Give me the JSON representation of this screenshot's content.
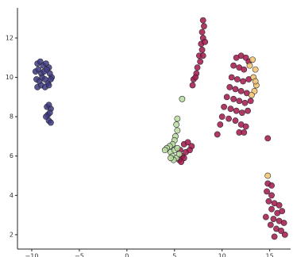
{
  "chart_data": {
    "type": "scatter",
    "xlim": [
      -11.5,
      17.2
    ],
    "ylim": [
      1.27,
      13.53
    ],
    "xticks": [
      {
        "value": -10,
        "label": "−10"
      },
      {
        "value": -5,
        "label": "−5"
      },
      0,
      5,
      10,
      15
    ],
    "yticks": [
      2,
      4,
      6,
      8,
      10,
      12
    ],
    "series": [
      {
        "color": "#3d3a85",
        "x": [
          -9.4,
          -9.1,
          -8.8,
          -8.5,
          -8.2,
          -9.6,
          -9.3,
          -9.0,
          -8.7,
          -8.4,
          -8.1,
          -7.9,
          -9.5,
          -9.2,
          -8.9,
          -8.6,
          -8.3,
          -8.0,
          -9.4,
          -9.0,
          -8.6,
          -8.2,
          -8.4,
          -8.2,
          -8.0,
          -8.3,
          -8.1,
          -8.5,
          -8.2,
          -8.0
        ],
        "y": [
          10.7,
          10.8,
          10.6,
          10.7,
          10.5,
          10.3,
          10.4,
          10.2,
          10.3,
          10.4,
          10.2,
          10.0,
          9.9,
          9.8,
          10.0,
          9.9,
          9.7,
          9.9,
          9.5,
          9.6,
          9.5,
          9.6,
          8.5,
          8.6,
          8.4,
          8.1,
          8.2,
          8.0,
          7.8,
          7.7
        ]
      },
      {
        "color": "#a3154b",
        "x": [
          8.0,
          8.1,
          7.9,
          8.0,
          7.8,
          7.9,
          7.6,
          7.7,
          7.4,
          7.3,
          7.0,
          6.9,
          7.2,
          8.2,
          8.0,
          11.5,
          12.0,
          12.5,
          12.8,
          11.2,
          11.8,
          12.3,
          11.0,
          11.6,
          12.2,
          12.8,
          10.8,
          11.4,
          12.0,
          12.6,
          10.5,
          11.2,
          11.8,
          12.4,
          13.0,
          10.2,
          10.9,
          11.5,
          12.1,
          12.7,
          10.0,
          10.7,
          11.4,
          12.0,
          12.5,
          9.8,
          11.8,
          12.3,
          9.5,
          14.8,
          5.6,
          6.0,
          6.4,
          6.8,
          5.8,
          6.2,
          6.6,
          5.5,
          6.0,
          5.7,
          14.8,
          14.7,
          15.2,
          14.9,
          15.5,
          16.0,
          15.2,
          15.8,
          16.3,
          14.6,
          15.4,
          16.0,
          16.5,
          15.1,
          15.7,
          16.2,
          15.5,
          16.6,
          15.2
        ],
        "y": [
          12.9,
          12.6,
          12.3,
          12.0,
          11.7,
          11.4,
          11.1,
          10.8,
          10.5,
          10.2,
          9.9,
          9.6,
          10.0,
          11.8,
          11.1,
          11.0,
          11.1,
          11.0,
          10.8,
          10.6,
          10.5,
          10.4,
          10.0,
          9.9,
          9.8,
          9.9,
          9.5,
          9.4,
          9.3,
          9.2,
          9.0,
          8.9,
          8.8,
          8.7,
          8.8,
          8.5,
          8.4,
          8.3,
          8.2,
          8.3,
          8.0,
          7.9,
          7.8,
          7.6,
          7.5,
          7.6,
          7.2,
          7.2,
          7.1,
          6.9,
          6.3,
          6.6,
          6.7,
          6.5,
          6.0,
          6.2,
          6.3,
          5.8,
          5.9,
          5.7,
          4.6,
          4.2,
          4.0,
          3.7,
          3.6,
          3.5,
          3.3,
          3.1,
          3.2,
          2.9,
          2.8,
          2.7,
          2.6,
          2.5,
          2.3,
          2.2,
          1.9,
          2.0,
          4.5
        ]
      },
      {
        "color": "#b9dca0",
        "x": [
          5.8,
          5.3,
          5.2,
          5.3,
          5.1,
          5.0,
          4.8,
          4.5,
          4.2,
          4.0,
          4.6,
          5.0,
          5.3,
          4.8,
          5.2,
          4.9,
          5.5,
          4.6
        ],
        "y": [
          8.9,
          7.9,
          7.6,
          7.3,
          7.0,
          6.8,
          6.6,
          6.5,
          6.4,
          6.3,
          6.2,
          6.3,
          6.4,
          6.0,
          5.9,
          5.8,
          6.1,
          5.9
        ]
      },
      {
        "color": "#f3c26f",
        "x": [
          13.2,
          13.5,
          13.3,
          13.6,
          13.4,
          13.1,
          12.9,
          13.5,
          14.8
        ],
        "y": [
          10.9,
          10.4,
          10.0,
          9.6,
          9.3,
          9.1,
          10.6,
          9.8,
          5.0
        ]
      }
    ]
  }
}
